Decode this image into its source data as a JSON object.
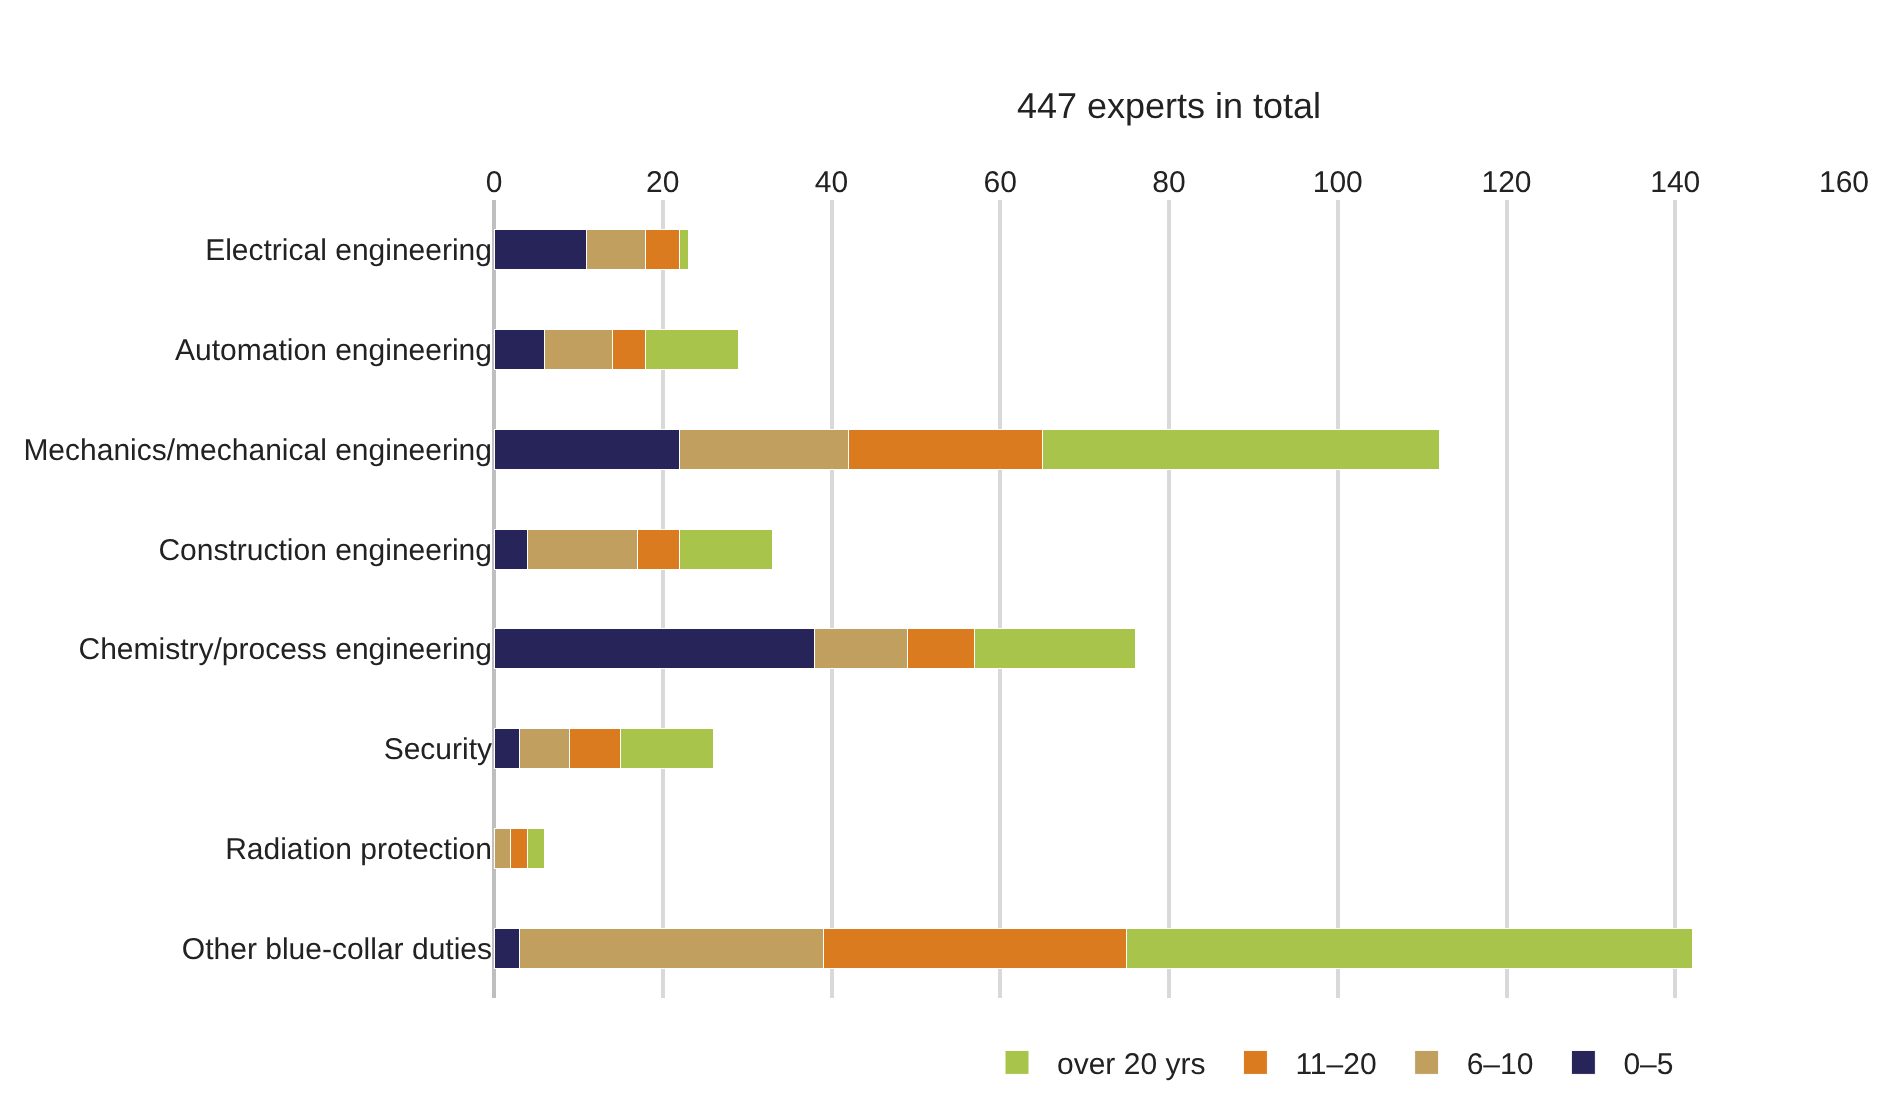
{
  "chart_data": {
    "type": "bar",
    "orientation": "horizontal",
    "stacked": true,
    "xlabel": "447 experts in total",
    "categories": [
      "Electrical engineering",
      "Automation engineering",
      "Mechanics/mechanical engineering",
      "Construction engineering",
      "Chemistry/process engineering",
      "Security",
      "Radiation protection",
      "Other blue-collar duties"
    ],
    "series": [
      {
        "name": "0–5",
        "color": "#262459",
        "values": [
          11,
          6,
          22,
          4,
          38,
          3,
          0,
          3
        ]
      },
      {
        "name": "6–10",
        "color": "#c09f5f",
        "values": [
          7,
          8,
          20,
          13,
          11,
          6,
          2,
          36
        ]
      },
      {
        "name": "11–20",
        "color": "#d97b1e",
        "values": [
          4,
          4,
          23,
          5,
          8,
          6,
          2,
          36
        ]
      },
      {
        "name": "over 20 yrs",
        "color": "#a9c44b",
        "values": [
          1,
          11,
          47,
          11,
          19,
          11,
          2,
          67
        ]
      }
    ],
    "xlim": [
      0,
      160
    ],
    "xticks": [
      0,
      20,
      40,
      60,
      80,
      100,
      120,
      140,
      160
    ],
    "grid": "x",
    "legend": "bottom"
  }
}
